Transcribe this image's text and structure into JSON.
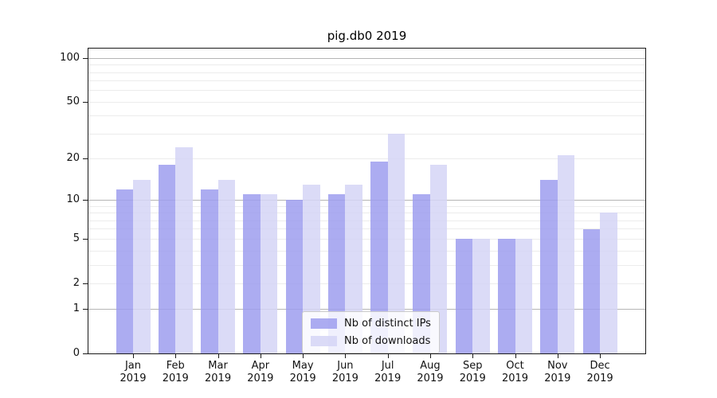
{
  "title": "pig.db0 2019",
  "chart_data": {
    "type": "bar",
    "title": "pig.db0 2019",
    "categories": [
      "Jan",
      "Feb",
      "Mar",
      "Apr",
      "May",
      "Jun",
      "Jul",
      "Aug",
      "Sep",
      "Oct",
      "Nov",
      "Dec"
    ],
    "category_year": "2019",
    "series": [
      {
        "name": "Nb of distinct IPs",
        "color": "#9d9dee",
        "values": [
          12,
          18,
          12,
          11,
          10,
          11,
          19,
          11,
          5,
          5,
          14,
          6
        ]
      },
      {
        "name": "Nb of downloads",
        "color": "#d5d5f6",
        "values": [
          14,
          24,
          14,
          11,
          13,
          13,
          30,
          18,
          5,
          5,
          21,
          8
        ]
      }
    ],
    "xlabel": "",
    "ylabel": "",
    "yscale": "log1p",
    "yticks": [
      0,
      1,
      2,
      5,
      10,
      20,
      50,
      100
    ],
    "ylim": [
      0,
      116
    ],
    "grid": true,
    "major_gridlines": [
      1,
      10,
      100
    ],
    "minor_gridlines": [
      2,
      3,
      4,
      5,
      6,
      7,
      8,
      9,
      20,
      30,
      40,
      50,
      60,
      70,
      80,
      90
    ],
    "legend_position": "lower center"
  },
  "colors": {
    "major_grid": "#b5b5b5",
    "minor_grid": "#ececec",
    "spine": "#1a1a1a",
    "text": "#111111"
  }
}
